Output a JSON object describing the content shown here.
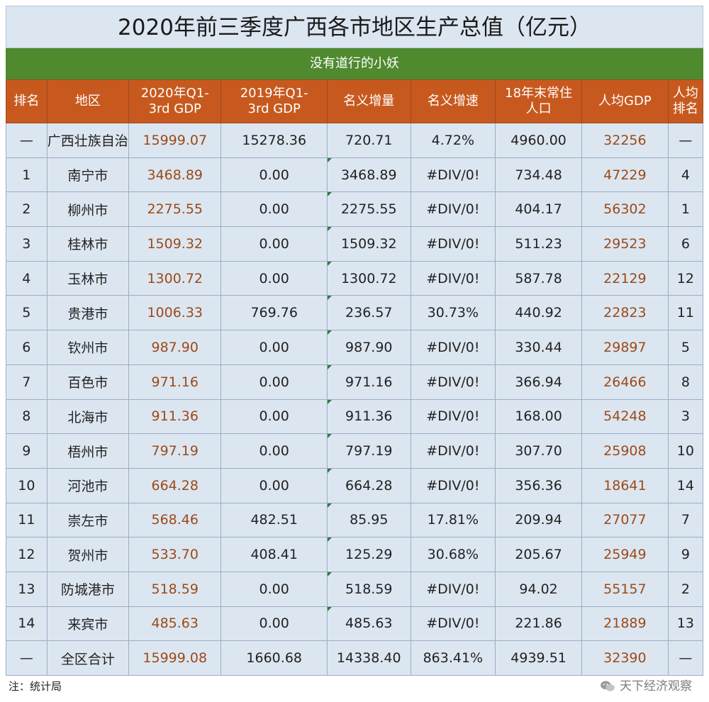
{
  "title": "2020年前三季度广西各市地区生产总值（亿元）",
  "subtitle": "没有道行的小妖",
  "headers": {
    "rank": "排名",
    "region": "地区",
    "gdp2020": [
      "2020年Q1-",
      "3rd GDP"
    ],
    "gdp2019": [
      "2019年Q1-",
      "3rd GDP"
    ],
    "increase": "名义增量",
    "rate": "名义增速",
    "population": [
      "18年末常住",
      "人口"
    ],
    "per_capita": "人均GDP",
    "pc_rank": [
      "人均",
      "排名"
    ]
  },
  "rows": [
    {
      "rank": "—",
      "region": "广西壮族自治区",
      "gdp2020": "15999.07",
      "gdp2019": "15278.36",
      "increase": "720.71",
      "rate": "4.72%",
      "population": "4960.00",
      "per_capita": "32256",
      "pc_rank": "—"
    },
    {
      "rank": "1",
      "region": "南宁市",
      "gdp2020": "3468.89",
      "gdp2019": "0.00",
      "increase": "3468.89",
      "rate": "#DIV/0!",
      "population": "734.48",
      "per_capita": "47229",
      "pc_rank": "4"
    },
    {
      "rank": "2",
      "region": "柳州市",
      "gdp2020": "2275.55",
      "gdp2019": "0.00",
      "increase": "2275.55",
      "rate": "#DIV/0!",
      "population": "404.17",
      "per_capita": "56302",
      "pc_rank": "1"
    },
    {
      "rank": "3",
      "region": "桂林市",
      "gdp2020": "1509.32",
      "gdp2019": "0.00",
      "increase": "1509.32",
      "rate": "#DIV/0!",
      "population": "511.23",
      "per_capita": "29523",
      "pc_rank": "6"
    },
    {
      "rank": "4",
      "region": "玉林市",
      "gdp2020": "1300.72",
      "gdp2019": "0.00",
      "increase": "1300.72",
      "rate": "#DIV/0!",
      "population": "587.78",
      "per_capita": "22129",
      "pc_rank": "12"
    },
    {
      "rank": "5",
      "region": "贵港市",
      "gdp2020": "1006.33",
      "gdp2019": "769.76",
      "increase": "236.57",
      "rate": "30.73%",
      "population": "440.92",
      "per_capita": "22823",
      "pc_rank": "11"
    },
    {
      "rank": "6",
      "region": "钦州市",
      "gdp2020": "987.90",
      "gdp2019": "0.00",
      "increase": "987.90",
      "rate": "#DIV/0!",
      "population": "330.44",
      "per_capita": "29897",
      "pc_rank": "5"
    },
    {
      "rank": "7",
      "region": "百色市",
      "gdp2020": "971.16",
      "gdp2019": "0.00",
      "increase": "971.16",
      "rate": "#DIV/0!",
      "population": "366.94",
      "per_capita": "26466",
      "pc_rank": "8"
    },
    {
      "rank": "8",
      "region": "北海市",
      "gdp2020": "911.36",
      "gdp2019": "0.00",
      "increase": "911.36",
      "rate": "#DIV/0!",
      "population": "168.00",
      "per_capita": "54248",
      "pc_rank": "3"
    },
    {
      "rank": "9",
      "region": "梧州市",
      "gdp2020": "797.19",
      "gdp2019": "0.00",
      "increase": "797.19",
      "rate": "#DIV/0!",
      "population": "307.70",
      "per_capita": "25908",
      "pc_rank": "10"
    },
    {
      "rank": "10",
      "region": "河池市",
      "gdp2020": "664.28",
      "gdp2019": "0.00",
      "increase": "664.28",
      "rate": "#DIV/0!",
      "population": "356.36",
      "per_capita": "18641",
      "pc_rank": "14"
    },
    {
      "rank": "11",
      "region": "崇左市",
      "gdp2020": "568.46",
      "gdp2019": "482.51",
      "increase": "85.95",
      "rate": "17.81%",
      "population": "209.94",
      "per_capita": "27077",
      "pc_rank": "7"
    },
    {
      "rank": "12",
      "region": "贺州市",
      "gdp2020": "533.70",
      "gdp2019": "408.41",
      "increase": "125.29",
      "rate": "30.68%",
      "population": "205.67",
      "per_capita": "25949",
      "pc_rank": "9"
    },
    {
      "rank": "13",
      "region": "防城港市",
      "gdp2020": "518.59",
      "gdp2019": "0.00",
      "increase": "518.59",
      "rate": "#DIV/0!",
      "population": "94.02",
      "per_capita": "55157",
      "pc_rank": "2"
    },
    {
      "rank": "14",
      "region": "来宾市",
      "gdp2020": "485.63",
      "gdp2019": "0.00",
      "increase": "485.63",
      "rate": "#DIV/0!",
      "population": "221.86",
      "per_capita": "21889",
      "pc_rank": "13"
    },
    {
      "rank": "—",
      "region": "全区合计",
      "gdp2020": "15999.08",
      "gdp2019": "1660.68",
      "increase": "14338.40",
      "rate": "863.41%",
      "population": "4939.51",
      "per_capita": "32390",
      "pc_rank": "—"
    }
  ],
  "footer": {
    "note": "注：统计局",
    "watermark": "天下经济观察"
  },
  "colors": {
    "header_bg": "#c8591e",
    "subtitle_bg": "#4f8a2e",
    "cell_bg": "#dce6f1",
    "brown_text": "#9c4a17"
  },
  "icons": {
    "watermark": "wechat-icon"
  }
}
